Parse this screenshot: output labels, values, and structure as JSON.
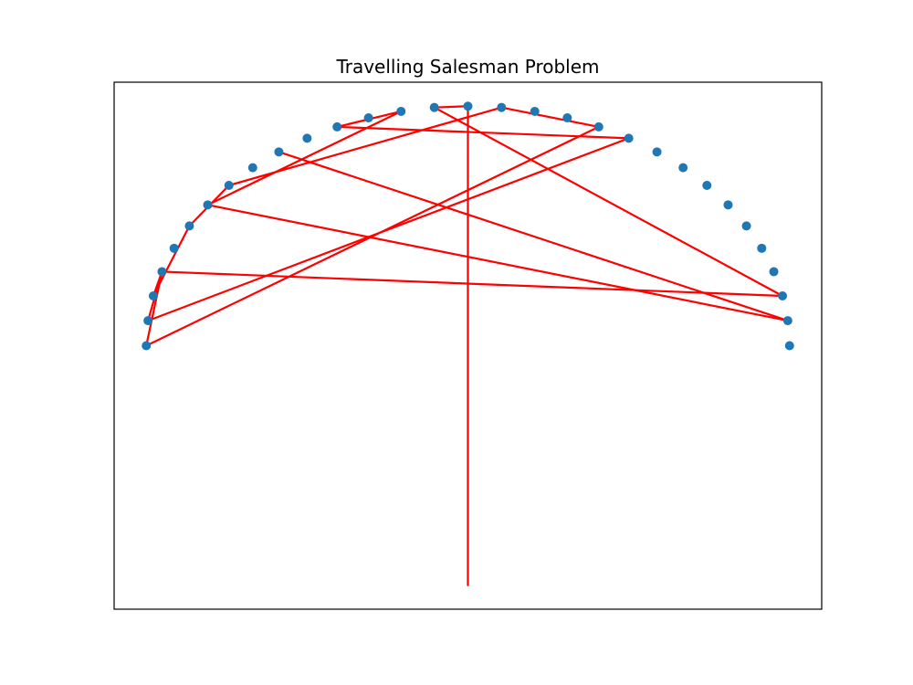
{
  "chart_data": {
    "type": "scatter",
    "title": "Travelling Salesman Problem",
    "xlabel": "",
    "ylabel": "",
    "xlim": [
      -1.1,
      1.1
    ],
    "ylim": [
      -1.1,
      1.1
    ],
    "axes_visible": false,
    "grid": false,
    "colors": {
      "points": "#1f77b4",
      "path": "#ff0000"
    },
    "points": [
      [
        1.0,
        0.0
      ],
      [
        0.9945,
        0.1045
      ],
      [
        0.9781,
        0.2079
      ],
      [
        0.9511,
        0.309
      ],
      [
        0.9135,
        0.4067
      ],
      [
        0.866,
        0.5
      ],
      [
        0.809,
        0.5878
      ],
      [
        0.7431,
        0.6691
      ],
      [
        0.6691,
        0.7431
      ],
      [
        0.5878,
        0.809
      ],
      [
        0.5,
        0.866
      ],
      [
        0.4067,
        0.9135
      ],
      [
        0.309,
        0.9511
      ],
      [
        0.2079,
        0.9781
      ],
      [
        0.1045,
        0.9945
      ],
      [
        0.0,
        1.0
      ],
      [
        -0.1045,
        0.9945
      ],
      [
        -0.2079,
        0.9781
      ],
      [
        -0.309,
        0.9511
      ],
      [
        -0.4067,
        0.9135
      ],
      [
        -0.5,
        0.866
      ],
      [
        -0.5878,
        0.809
      ],
      [
        -0.6691,
        0.7431
      ],
      [
        -0.7431,
        0.6691
      ],
      [
        -0.809,
        0.5878
      ],
      [
        -0.866,
        0.5
      ],
      [
        -0.9135,
        0.4067
      ],
      [
        -0.9511,
        0.309
      ],
      [
        -0.9781,
        0.2079
      ],
      [
        -0.9945,
        0.1045
      ],
      [
        -1.0,
        0.0
      ]
    ],
    "path": [
      [
        -0.5878,
        0.809
      ],
      [
        0.9945,
        0.1045
      ],
      [
        -0.809,
        0.5878
      ],
      [
        -0.2079,
        0.9781
      ],
      [
        -0.4067,
        0.9135
      ],
      [
        0.5,
        0.866
      ],
      [
        -0.9945,
        0.1045
      ],
      [
        -0.9511,
        0.309
      ],
      [
        -0.9781,
        0.2079
      ],
      [
        -0.866,
        0.5
      ],
      [
        -0.7431,
        0.6691
      ],
      [
        0.1045,
        0.9945
      ],
      [
        0.4067,
        0.9135
      ],
      [
        -1.0,
        0.0
      ],
      [
        -0.9511,
        0.309
      ],
      [
        0.9781,
        0.2079
      ],
      [
        -0.1045,
        0.9945
      ],
      [
        0.0,
        1.0
      ],
      [
        0.0,
        -1.0
      ]
    ]
  }
}
